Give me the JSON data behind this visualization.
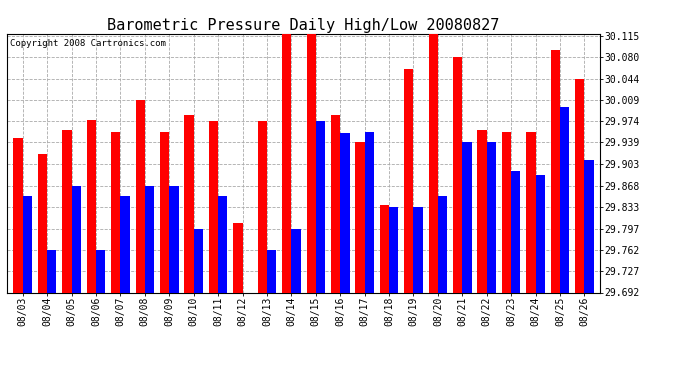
{
  "title": "Barometric Pressure Daily High/Low 20080827",
  "copyright": "Copyright 2008 Cartronics.com",
  "dates": [
    "08/03",
    "08/04",
    "08/05",
    "08/06",
    "08/07",
    "08/08",
    "08/09",
    "08/10",
    "08/11",
    "08/12",
    "08/13",
    "08/14",
    "08/15",
    "08/16",
    "08/17",
    "08/18",
    "08/19",
    "08/20",
    "08/21",
    "08/22",
    "08/23",
    "08/24",
    "08/25",
    "08/26"
  ],
  "highs": [
    29.947,
    29.92,
    29.96,
    29.976,
    29.957,
    30.009,
    29.957,
    29.984,
    29.974,
    29.806,
    29.974,
    30.12,
    30.122,
    29.984,
    29.94,
    29.836,
    30.06,
    30.12,
    30.08,
    29.96,
    29.957,
    29.957,
    30.091,
    30.044
  ],
  "lows": [
    29.851,
    29.762,
    29.868,
    29.762,
    29.851,
    29.868,
    29.868,
    29.797,
    29.851,
    29.692,
    29.762,
    29.797,
    29.974,
    29.955,
    29.957,
    29.833,
    29.833,
    29.851,
    29.94,
    29.94,
    29.892,
    29.885,
    29.997,
    29.91
  ],
  "ymin": 29.692,
  "ymax": 30.115,
  "yticks": [
    29.692,
    29.727,
    29.762,
    29.797,
    29.833,
    29.868,
    29.903,
    29.939,
    29.974,
    30.009,
    30.044,
    30.08,
    30.115
  ],
  "high_color": "#ff0000",
  "low_color": "#0000ff",
  "bg_color": "#ffffff",
  "grid_color": "#aaaaaa",
  "title_fontsize": 11,
  "tick_fontsize": 7,
  "copyright_fontsize": 6.5,
  "bar_width": 0.38
}
